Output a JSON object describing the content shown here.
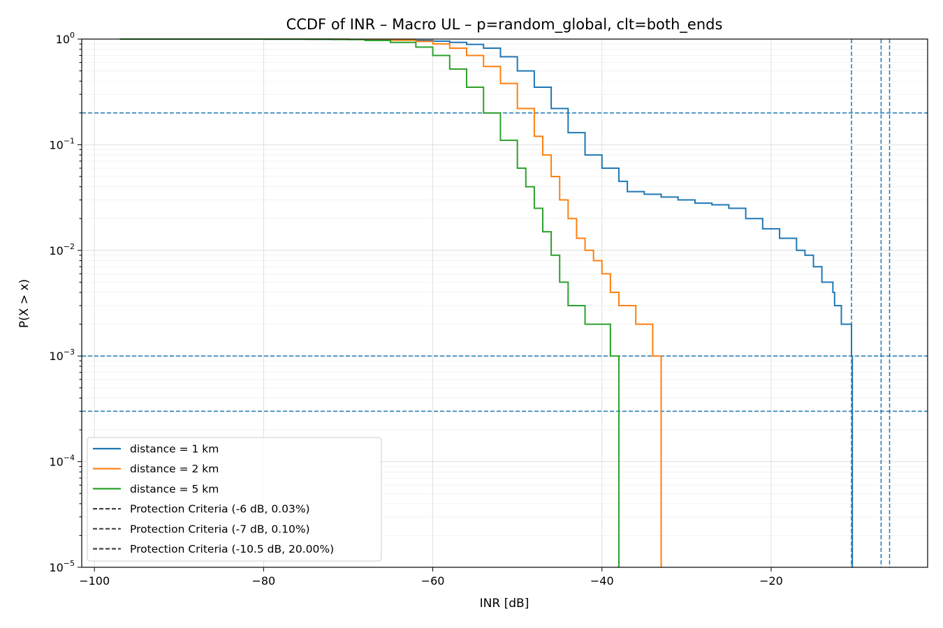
{
  "chart_data": {
    "type": "line",
    "title": "CCDF of INR – Macro UL – p=random_global, clt=both_ends",
    "xlabel": "INR [dB]",
    "ylabel": "P(X > x)",
    "xlim": [
      -101.5,
      -1.5
    ],
    "ylim": [
      1e-05,
      1
    ],
    "yscale": "log",
    "xticks": [
      -100,
      -80,
      -60,
      -40,
      -20
    ],
    "xtick_labels": [
      "−100",
      "−80",
      "−60",
      "−40",
      "−20"
    ],
    "yticks": [
      {
        "value": 1,
        "base": "10",
        "exp": "0"
      },
      {
        "value": 0.1,
        "base": "10",
        "exp": "−1"
      },
      {
        "value": 0.01,
        "base": "10",
        "exp": "−2"
      },
      {
        "value": 0.001,
        "base": "10",
        "exp": "−3"
      },
      {
        "value": 0.0001,
        "base": "10",
        "exp": "−4"
      },
      {
        "value": 1e-05,
        "base": "10",
        "exp": "−5"
      }
    ],
    "grid": true,
    "legend_position": "lower-left",
    "series": [
      {
        "name": "distance = 1 km",
        "color": "#1f77b4",
        "points": [
          [
            -96.7,
            1.0
          ],
          [
            -80,
            0.998
          ],
          [
            -75,
            0.995
          ],
          [
            -70,
            0.99
          ],
          [
            -66,
            0.982
          ],
          [
            -62,
            0.97
          ],
          [
            -60,
            0.955
          ],
          [
            -58,
            0.93
          ],
          [
            -56,
            0.89
          ],
          [
            -54,
            0.82
          ],
          [
            -52,
            0.68
          ],
          [
            -50,
            0.5
          ],
          [
            -48,
            0.35
          ],
          [
            -46,
            0.22
          ],
          [
            -44,
            0.13
          ],
          [
            -42,
            0.08
          ],
          [
            -40,
            0.06
          ],
          [
            -38,
            0.045
          ],
          [
            -37,
            0.036
          ],
          [
            -35,
            0.034
          ],
          [
            -33,
            0.032
          ],
          [
            -31,
            0.03
          ],
          [
            -29,
            0.028
          ],
          [
            -27,
            0.027
          ],
          [
            -25,
            0.025
          ],
          [
            -23,
            0.02
          ],
          [
            -21,
            0.016
          ],
          [
            -19,
            0.013
          ],
          [
            -17,
            0.01
          ],
          [
            -16,
            0.009
          ],
          [
            -15,
            0.007
          ],
          [
            -14,
            0.005
          ],
          [
            -12.7,
            0.004
          ],
          [
            -12.5,
            0.003
          ],
          [
            -11.7,
            0.002
          ],
          [
            -10.7,
            0.002
          ],
          [
            -10.5,
            0.001
          ],
          [
            -10.4,
            1e-05
          ]
        ]
      },
      {
        "name": "distance = 2 km",
        "color": "#ff7f0e",
        "points": [
          [
            -90,
            1.0
          ],
          [
            -75,
            0.998
          ],
          [
            -70,
            0.99
          ],
          [
            -65,
            0.975
          ],
          [
            -62,
            0.95
          ],
          [
            -60,
            0.9
          ],
          [
            -58,
            0.82
          ],
          [
            -56,
            0.7
          ],
          [
            -54,
            0.55
          ],
          [
            -52,
            0.38
          ],
          [
            -50,
            0.22
          ],
          [
            -48,
            0.12
          ],
          [
            -47,
            0.08
          ],
          [
            -46,
            0.05
          ],
          [
            -45,
            0.03
          ],
          [
            -44,
            0.02
          ],
          [
            -43,
            0.013
          ],
          [
            -42,
            0.01
          ],
          [
            -41,
            0.008
          ],
          [
            -40,
            0.006
          ],
          [
            -39,
            0.004
          ],
          [
            -38,
            0.003
          ],
          [
            -36,
            0.002
          ],
          [
            -34,
            0.001
          ],
          [
            -33,
            1e-05
          ]
        ]
      },
      {
        "name": "distance = 5 km",
        "color": "#2ca02c",
        "points": [
          [
            -97,
            1.0
          ],
          [
            -80,
            0.998
          ],
          [
            -72,
            0.99
          ],
          [
            -68,
            0.97
          ],
          [
            -65,
            0.93
          ],
          [
            -62,
            0.84
          ],
          [
            -60,
            0.7
          ],
          [
            -58,
            0.52
          ],
          [
            -56,
            0.35
          ],
          [
            -54,
            0.2
          ],
          [
            -52,
            0.11
          ],
          [
            -50,
            0.06
          ],
          [
            -49,
            0.04
          ],
          [
            -48,
            0.025
          ],
          [
            -47,
            0.015
          ],
          [
            -46,
            0.009
          ],
          [
            -45,
            0.005
          ],
          [
            -44,
            0.003
          ],
          [
            -42,
            0.002
          ],
          [
            -40,
            0.002
          ],
          [
            -39,
            0.001
          ],
          [
            -38,
            1e-05
          ]
        ]
      }
    ],
    "protection_criteria": [
      {
        "name": "Protection Criteria (-6 dB, 0.03%)",
        "inr": -6,
        "probability": 0.0003
      },
      {
        "name": "Protection Criteria (-7 dB, 0.10%)",
        "inr": -7,
        "probability": 0.001
      },
      {
        "name": "Protection Criteria (-10.5 dB, 20.00%)",
        "inr": -10.5,
        "probability": 0.2
      }
    ],
    "protection_line_color": "#1f77b4",
    "legend_dash_color": "#444444"
  }
}
